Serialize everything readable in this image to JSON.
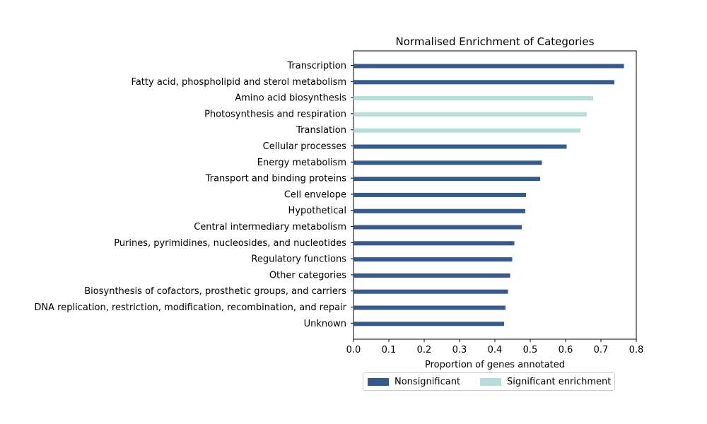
{
  "chart_data": {
    "type": "bar",
    "orientation": "horizontal",
    "title": "Normalised Enrichment of Categories",
    "xlabel": "Proportion of genes annotated",
    "ylabel": "",
    "xlim": [
      0,
      0.8
    ],
    "xticks": [
      "0.0",
      "0.1",
      "0.2",
      "0.3",
      "0.4",
      "0.5",
      "0.6",
      "0.7",
      "0.8"
    ],
    "grid": false,
    "legend_placement": "bottom-center",
    "legend": [
      {
        "label": "Nonsignificant",
        "color": "#365a8a"
      },
      {
        "label": "Significant enrichment",
        "color": "#b8dcdc"
      }
    ],
    "categories": [
      "Transcription",
      "Fatty acid, phospholipid and sterol metabolism",
      "Amino acid biosynthesis",
      "Photosynthesis and respiration",
      "Translation",
      "Cellular processes",
      "Energy metabolism",
      "Transport and binding proteins",
      "Cell envelope",
      "Hypothetical",
      "Central intermediary metabolism",
      "Purines, pyrimidines, nucleosides, and nucleotides",
      "Regulatory functions",
      "Other categories",
      "Biosynthesis of cofactors, prosthetic groups, and carriers",
      "DNA replication, restriction, modification, recombination, and repair",
      "Unknown"
    ],
    "values": [
      0.765,
      0.738,
      0.678,
      0.66,
      0.642,
      0.603,
      0.533,
      0.528,
      0.488,
      0.486,
      0.476,
      0.455,
      0.449,
      0.443,
      0.437,
      0.43,
      0.426
    ],
    "significant": [
      false,
      false,
      true,
      true,
      true,
      false,
      false,
      false,
      false,
      false,
      false,
      false,
      false,
      false,
      false,
      false,
      false
    ]
  }
}
